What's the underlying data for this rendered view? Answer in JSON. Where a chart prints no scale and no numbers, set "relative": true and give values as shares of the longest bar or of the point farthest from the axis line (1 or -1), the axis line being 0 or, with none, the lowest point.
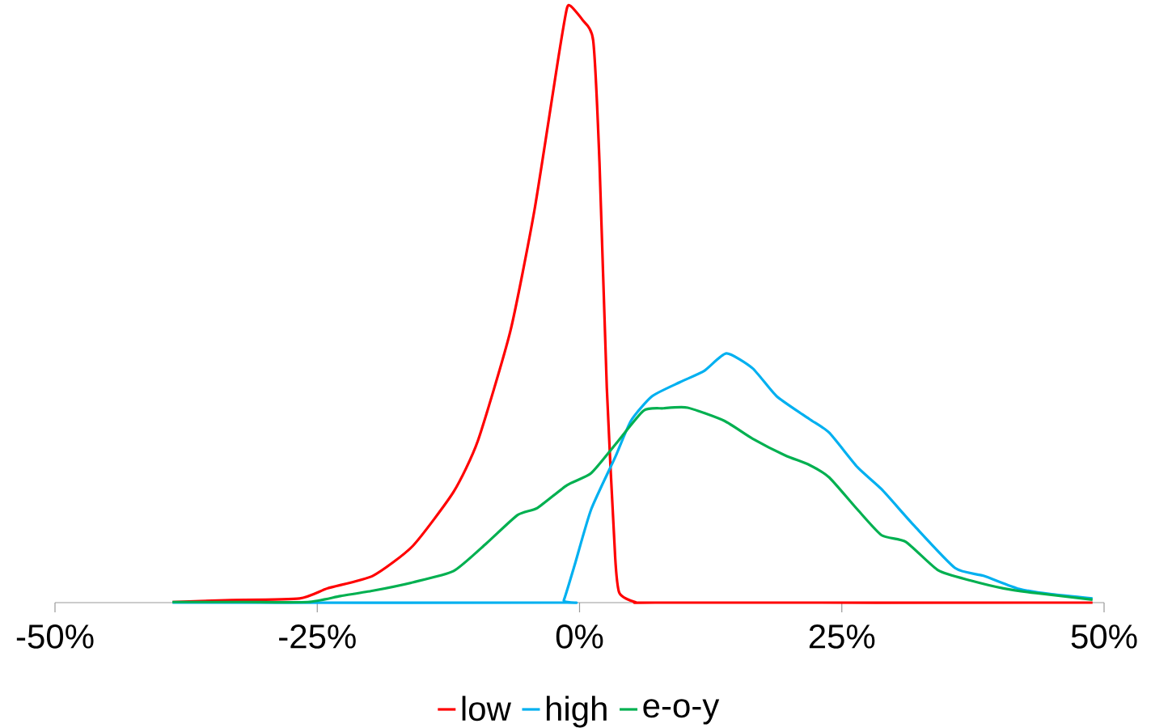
{
  "chart_data": {
    "type": "line",
    "relative": true,
    "legend": "bottom",
    "grid": false,
    "xlim": [
      -50,
      50
    ],
    "xticks": [
      {
        "value": -50,
        "label": "-50%"
      },
      {
        "value": -25,
        "label": "-25%"
      },
      {
        "value": 0,
        "label": "0%"
      },
      {
        "value": 25,
        "label": "25%"
      },
      {
        "value": 50,
        "label": "50%"
      }
    ],
    "series": [
      {
        "name": "low",
        "color": "#ff0000",
        "x": [
          -38.8,
          -33.8,
          -26.7,
          -24.0,
          -19.7,
          -15.9,
          -12.0,
          -9.7,
          -6.6,
          -4.3,
          -2.0,
          -1.2,
          -0.8,
          0.3,
          1.3,
          1.9,
          2.6,
          3.4,
          3.8,
          5.3,
          8.0,
          48.9
        ],
        "values": [
          0.001,
          0.004,
          0.007,
          0.024,
          0.045,
          0.095,
          0.186,
          0.271,
          0.455,
          0.658,
          0.916,
          0.997,
          1.0,
          0.977,
          0.943,
          0.739,
          0.36,
          0.075,
          0.016,
          0.001,
          0,
          0
        ]
      },
      {
        "name": "high",
        "color": "#00b0f0",
        "x": [
          -38.8,
          -2.0,
          -1.5,
          -0.5,
          1.1,
          3.4,
          4.9,
          6.9,
          9.6,
          11.9,
          14.0,
          16.5,
          18.8,
          21.9,
          23.8,
          26.5,
          28.8,
          31.9,
          35.8,
          38.5,
          41.9,
          45.0,
          48.9
        ],
        "values": [
          0,
          0,
          0.004,
          0.061,
          0.156,
          0.244,
          0.305,
          0.346,
          0.37,
          0.389,
          0.418,
          0.393,
          0.346,
          0.308,
          0.285,
          0.227,
          0.19,
          0.129,
          0.058,
          0.045,
          0.023,
          0.014,
          0.007
        ]
      },
      {
        "name": "e-o-y",
        "color": "#00b050",
        "x": [
          -38.8,
          -32.1,
          -25.9,
          -22.8,
          -19.7,
          -15.9,
          -12.0,
          -8.9,
          -5.9,
          -4.0,
          -1.2,
          1.1,
          3.4,
          6.1,
          8.0,
          10.3,
          13.8,
          16.5,
          19.6,
          21.9,
          23.8,
          26.5,
          28.8,
          31.1,
          34.2,
          37.3,
          40.4,
          43.5,
          48.9
        ],
        "values": [
          0.001,
          0.001,
          0.001,
          0.011,
          0.02,
          0.034,
          0.053,
          0.099,
          0.147,
          0.159,
          0.197,
          0.217,
          0.265,
          0.322,
          0.326,
          0.327,
          0.305,
          0.275,
          0.247,
          0.231,
          0.21,
          0.156,
          0.113,
          0.102,
          0.054,
          0.037,
          0.024,
          0.016,
          0.005
        ]
      }
    ]
  }
}
